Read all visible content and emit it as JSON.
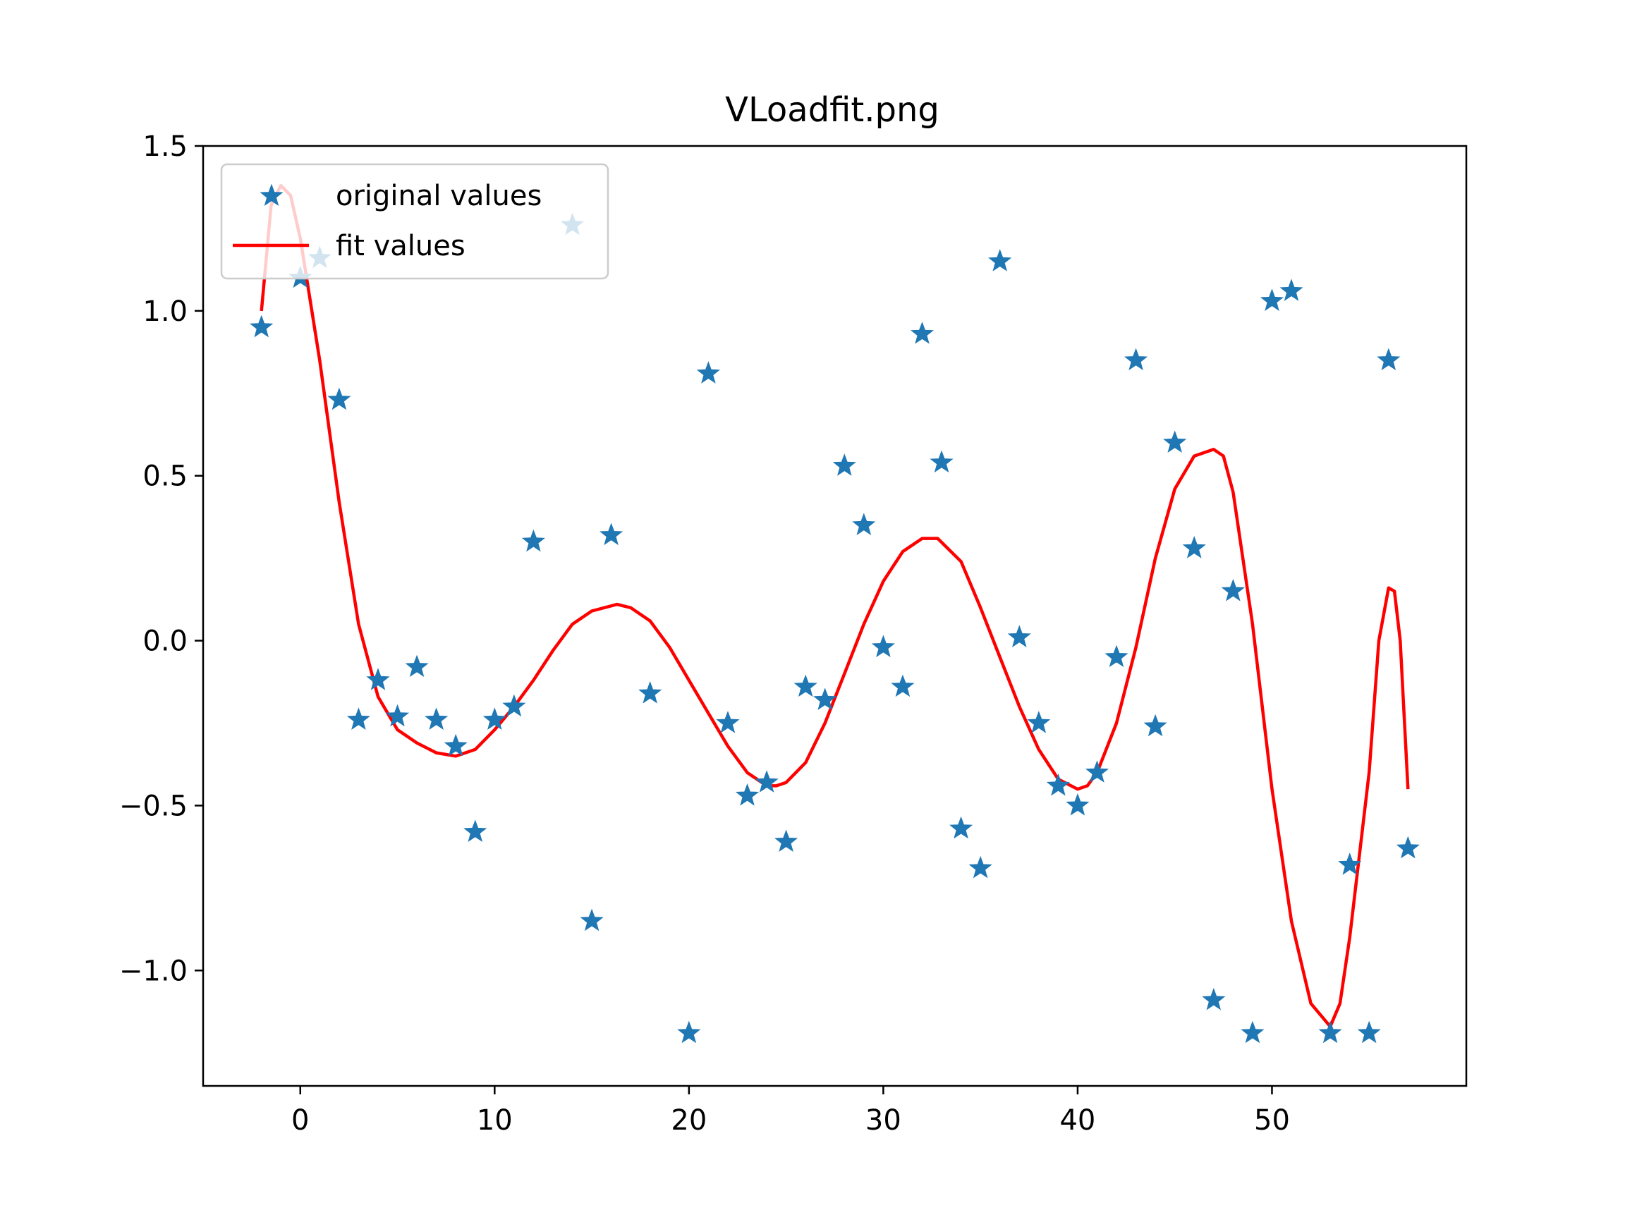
{
  "chart_data": {
    "type": "scatter",
    "title": "VLoadfit.png",
    "xlabel": "",
    "ylabel": "",
    "xlim": [
      -5,
      60
    ],
    "ylim": [
      -1.35,
      1.5
    ],
    "x_ticks": [
      0,
      10,
      20,
      30,
      40,
      50
    ],
    "x_tick_labels": [
      "0",
      "10",
      "20",
      "30",
      "40",
      "50"
    ],
    "y_ticks": [
      -1.0,
      -0.5,
      0.0,
      0.5,
      1.0,
      1.5
    ],
    "y_tick_labels": [
      "−1.0",
      "−0.5",
      "0.0",
      "0.5",
      "1.0",
      "1.5"
    ],
    "grid": false,
    "legend": {
      "placement": "upper-left",
      "entries": [
        "original values",
        "fit values"
      ]
    },
    "series": [
      {
        "name": "original values",
        "kind": "scatter",
        "marker": "star",
        "color": "#1f77b4",
        "points": [
          [
            -2,
            0.95
          ],
          [
            0,
            1.1
          ],
          [
            1,
            1.16
          ],
          [
            2,
            0.73
          ],
          [
            3,
            -0.24
          ],
          [
            4,
            -0.12
          ],
          [
            5,
            -0.23
          ],
          [
            6,
            -0.08
          ],
          [
            7,
            -0.24
          ],
          [
            8,
            -0.32
          ],
          [
            9,
            -0.58
          ],
          [
            10,
            -0.24
          ],
          [
            11,
            -0.2
          ],
          [
            12,
            0.3
          ],
          [
            14,
            1.26
          ],
          [
            15,
            -0.85
          ],
          [
            16,
            0.32
          ],
          [
            18,
            -0.16
          ],
          [
            20,
            -1.19
          ],
          [
            21,
            0.81
          ],
          [
            22,
            -0.25
          ],
          [
            23,
            -0.47
          ],
          [
            24,
            -0.43
          ],
          [
            25,
            -0.61
          ],
          [
            26,
            -0.14
          ],
          [
            27,
            -0.18
          ],
          [
            28,
            0.53
          ],
          [
            29,
            0.35
          ],
          [
            30,
            -0.02
          ],
          [
            31,
            -0.14
          ],
          [
            32,
            0.93
          ],
          [
            33,
            0.54
          ],
          [
            34,
            -0.57
          ],
          [
            35,
            -0.69
          ],
          [
            36,
            1.15
          ],
          [
            37,
            0.01
          ],
          [
            38,
            -0.25
          ],
          [
            39,
            -0.44
          ],
          [
            40,
            -0.5
          ],
          [
            41,
            -0.4
          ],
          [
            42,
            -0.05
          ],
          [
            43,
            0.85
          ],
          [
            44,
            -0.26
          ],
          [
            45,
            0.6
          ],
          [
            46,
            0.28
          ],
          [
            47,
            -1.09
          ],
          [
            48,
            0.15
          ],
          [
            49,
            -1.19
          ],
          [
            50,
            1.03
          ],
          [
            51,
            1.06
          ],
          [
            53,
            -1.19
          ],
          [
            54,
            -0.68
          ],
          [
            55,
            -1.19
          ],
          [
            56,
            0.85
          ],
          [
            57,
            -0.63
          ]
        ]
      },
      {
        "name": "fit values",
        "kind": "line",
        "color": "#ff0000",
        "points": [
          [
            -2,
            1.0
          ],
          [
            -1.5,
            1.32
          ],
          [
            -1,
            1.38
          ],
          [
            -0.5,
            1.35
          ],
          [
            0,
            1.22
          ],
          [
            1,
            0.85
          ],
          [
            2,
            0.42
          ],
          [
            3,
            0.05
          ],
          [
            4,
            -0.17
          ],
          [
            5,
            -0.27
          ],
          [
            6,
            -0.31
          ],
          [
            7,
            -0.34
          ],
          [
            8,
            -0.35
          ],
          [
            9,
            -0.33
          ],
          [
            10,
            -0.27
          ],
          [
            11,
            -0.2
          ],
          [
            12,
            -0.12
          ],
          [
            13,
            -0.03
          ],
          [
            14,
            0.05
          ],
          [
            15,
            0.09
          ],
          [
            16.3,
            0.11
          ],
          [
            17,
            0.1
          ],
          [
            18,
            0.06
          ],
          [
            19,
            -0.02
          ],
          [
            20,
            -0.12
          ],
          [
            21,
            -0.22
          ],
          [
            22,
            -0.32
          ],
          [
            23,
            -0.4
          ],
          [
            24,
            -0.44
          ],
          [
            24.5,
            -0.44
          ],
          [
            25,
            -0.43
          ],
          [
            26,
            -0.37
          ],
          [
            27,
            -0.25
          ],
          [
            28,
            -0.1
          ],
          [
            29,
            0.05
          ],
          [
            30,
            0.18
          ],
          [
            31,
            0.27
          ],
          [
            32,
            0.31
          ],
          [
            32.8,
            0.31
          ],
          [
            34,
            0.24
          ],
          [
            35,
            0.1
          ],
          [
            36,
            -0.05
          ],
          [
            37,
            -0.2
          ],
          [
            38,
            -0.33
          ],
          [
            39,
            -0.42
          ],
          [
            40,
            -0.45
          ],
          [
            40.5,
            -0.44
          ],
          [
            41,
            -0.4
          ],
          [
            42,
            -0.25
          ],
          [
            43,
            -0.02
          ],
          [
            44,
            0.25
          ],
          [
            45,
            0.46
          ],
          [
            46,
            0.56
          ],
          [
            47,
            0.58
          ],
          [
            47.5,
            0.56
          ],
          [
            48,
            0.45
          ],
          [
            49,
            0.05
          ],
          [
            50,
            -0.45
          ],
          [
            51,
            -0.85
          ],
          [
            52,
            -1.1
          ],
          [
            53,
            -1.17
          ],
          [
            53.5,
            -1.1
          ],
          [
            54,
            -0.9
          ],
          [
            55,
            -0.4
          ],
          [
            55.5,
            0.0
          ],
          [
            56,
            0.16
          ],
          [
            56.3,
            0.15
          ],
          [
            56.6,
            0.0
          ],
          [
            57,
            -0.45
          ]
        ]
      }
    ]
  }
}
